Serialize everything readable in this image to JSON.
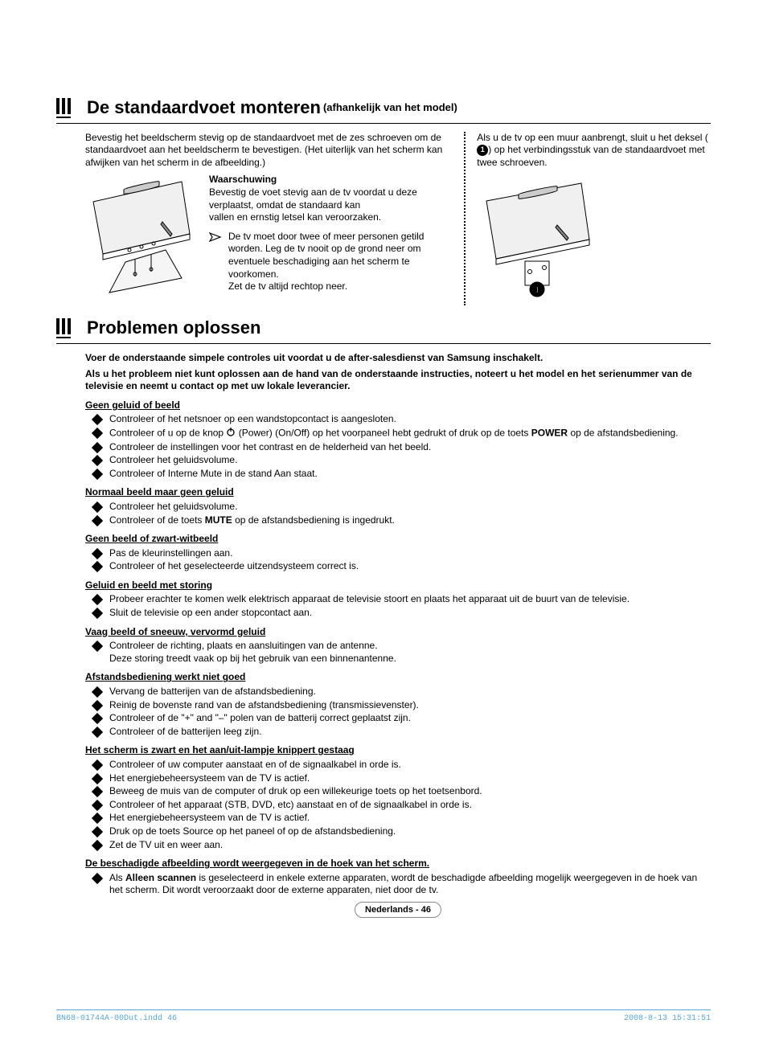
{
  "section1": {
    "title": "De standaardvoet monteren",
    "subtitle": "(afhankelijk van het model)",
    "left_intro": "Bevestig het beeldscherm stevig op de standaardvoet met de zes schroeven om de standaardvoet aan het beeldscherm te bevestigen. (Het uiterlijk van het scherm kan afwijken van het scherm in de afbeelding.)",
    "warning_label": "Waarschuwing",
    "warning_text": "Bevestig de voet stevig aan de tv voordat u deze verplaatst, omdat de standaard kan",
    "warning_text2": "vallen en ernstig letsel kan veroorzaken.",
    "note": "De tv moet door twee of meer personen getild worden. Leg de tv nooit op de grond neer om eventuele beschadiging aan het scherm te voorkomen.",
    "note_line2": "Zet de tv altijd rechtop neer.",
    "right_text_a": "Als u de tv op een muur aanbrengt, sluit u het deksel (",
    "right_text_b": ") op het verbindingsstuk van de standaardvoet met twee schroeven."
  },
  "section2": {
    "title": "Problemen oplossen",
    "intro1": "Voer de onderstaande simpele controles uit voordat u de after-salesdienst van Samsung inschakelt.",
    "intro2": "Als u het probleem niet kunt oplossen aan de hand van de onderstaande instructies, noteert u het model en het serienummer van de televisie en neemt u contact op met uw lokale leverancier.",
    "groups": [
      {
        "heading": "Geen geluid of beeld",
        "items": [
          {
            "text": "Controleer of het netsnoer op een wandstopcontact is aangesloten."
          },
          {
            "pre": "Controleer of u op de knop ",
            "power": true,
            "mid": " (Power) (On/Off) op het voorpaneel hebt gedrukt of druk op de toets ",
            "bold": "POWER",
            "post": " op de afstandsbediening."
          },
          {
            "text": "Controleer de instellingen voor het contrast en de helderheid van het beeld."
          },
          {
            "text": "Controleer het geluidsvolume."
          },
          {
            "text": "Controleer of Interne Mute in de stand Aan staat."
          }
        ]
      },
      {
        "heading": "Normaal beeld maar geen geluid",
        "items": [
          {
            "text": "Controleer het geluidsvolume."
          },
          {
            "pre": "Controleer of de toets ",
            "bold": "MUTE",
            "post": " op de afstandsbediening is ingedrukt."
          }
        ]
      },
      {
        "heading": "Geen beeld of zwart-witbeeld",
        "items": [
          {
            "text": "Pas de kleurinstellingen aan."
          },
          {
            "text": "Controleer of het geselecteerde uitzendsysteem correct is."
          }
        ]
      },
      {
        "heading": "Geluid en beeld met storing",
        "items": [
          {
            "text": "Probeer erachter te komen welk elektrisch apparaat de televisie stoort en plaats het apparaat uit de buurt van de televisie."
          },
          {
            "text": "Sluit de televisie op een ander stopcontact aan."
          }
        ]
      },
      {
        "heading": "Vaag beeld of sneeuw, vervormd geluid",
        "items": [
          {
            "text": "Controleer de richting, plaats en aansluitingen van de antenne.",
            "extra": "Deze storing treedt vaak op bij het gebruik van een binnenantenne."
          }
        ]
      },
      {
        "heading": "Afstandsbediening werkt niet goed",
        "items": [
          {
            "text": "Vervang de batterijen van de afstandsbediening."
          },
          {
            "text": "Reinig de bovenste rand van de afstandsbediening (transmissievenster)."
          },
          {
            "text": "Controleer of de \"+\" and \"–\" polen van de batterij correct geplaatst zijn."
          },
          {
            "text": "Controleer of de batterijen leeg zijn."
          }
        ]
      },
      {
        "heading": "Het scherm is zwart en het aan/uit-lampje knippert gestaag",
        "items": [
          {
            "text": "Controleer of uw computer aanstaat en of de signaalkabel in orde is."
          },
          {
            "text": "Het energiebeheersysteem van de TV is actief."
          },
          {
            "text": "Beweeg de muis van de computer of druk op een willekeurige toets op het toetsenbord."
          },
          {
            "text": "Controleer of het apparaat (STB, DVD, etc) aanstaat en of de signaalkabel in orde is."
          },
          {
            "text": "Het energiebeheersysteem van de TV is actief."
          },
          {
            "text": "Druk op de toets Source op het paneel of op de afstandsbediening."
          },
          {
            "text": "Zet de TV uit en weer aan."
          }
        ]
      },
      {
        "heading": "De beschadigde afbeelding wordt weergegeven in de hoek van het scherm.",
        "items": [
          {
            "pre": "Als ",
            "bold": "Alleen scannen",
            "post": " is geselecteerd in enkele externe apparaten, wordt de beschadigde afbeelding mogelijk weergegeven in de hoek van het scherm. Dit wordt veroorzaakt door de externe apparaten, niet door de tv."
          }
        ]
      }
    ]
  },
  "page_label": "Nederlands - 46",
  "footer_left": "BN68-01744A-00Dut.indd   46",
  "footer_right": "2008-8-13   15:31:51",
  "colors": {
    "accent": "#5aa5d8"
  }
}
